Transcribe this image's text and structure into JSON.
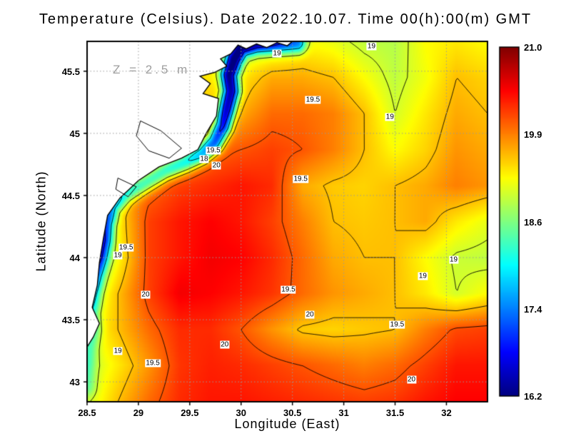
{
  "chart_data": {
    "type": "heatmap",
    "title": "Temperature (Celsius). Date 2022.10.07. Time 00(h):00(m) GMT",
    "units": "Celsius",
    "depth_annotation": "Z = 2.5 m",
    "grid_on": true,
    "x_axis": {
      "label": "Longitude (East)",
      "range": [
        28.5,
        32.4
      ],
      "tick_values": [
        28.5,
        29,
        29.5,
        30,
        30.5,
        31,
        31.5,
        32
      ],
      "tick_labels": [
        "28.5",
        "29",
        "29.5",
        "30",
        "30.5",
        "31",
        "31.5",
        "32"
      ]
    },
    "y_axis": {
      "label": "Latitude (North)",
      "range": [
        42.84,
        45.74
      ],
      "tick_values": [
        43,
        43.5,
        44,
        44.5,
        45,
        45.5
      ],
      "tick_labels": [
        "43",
        "43.5",
        "44",
        "44.5",
        "45",
        "45.5"
      ]
    },
    "colorbar": {
      "min": 16.2,
      "max": 21.0,
      "tick_labels": [
        "21.0",
        "19.9",
        "18.6",
        "17.4",
        "16.2"
      ]
    },
    "colors": {
      "land": "#ffffff",
      "coast_line": "#000000",
      "grid_line": "#9a9a9a",
      "contour_line": "#000000",
      "annotation": "#9e9e9e"
    },
    "grid": {
      "lons": [
        28.5,
        28.8,
        29.1,
        29.4,
        29.7,
        30.0,
        30.3,
        30.6,
        30.9,
        31.2,
        31.5,
        31.8,
        32.1,
        32.4
      ],
      "lats": [
        45.74,
        45.45,
        45.16,
        44.87,
        44.58,
        44.29,
        44.0,
        43.71,
        43.42,
        43.13,
        42.84
      ],
      "values": [
        [
          19.3,
          19.3,
          19.3,
          19.3,
          19.2,
          18.9,
          19.0,
          19.2,
          19.1,
          18.9,
          18.85,
          19.2,
          19.3,
          19.2
        ],
        [
          19.4,
          19.4,
          19.4,
          19.4,
          19.3,
          19.3,
          19.6,
          19.6,
          19.5,
          19.2,
          18.9,
          19.15,
          19.5,
          19.4
        ],
        [
          19.5,
          19.5,
          19.5,
          19.5,
          19.5,
          19.6,
          19.9,
          19.9,
          19.8,
          19.5,
          19.0,
          19.3,
          19.6,
          19.5
        ],
        [
          19.6,
          19.6,
          19.6,
          19.7,
          19.9,
          20.0,
          20.1,
          20.0,
          19.8,
          19.5,
          19.2,
          19.4,
          19.7,
          19.6
        ],
        [
          18.9,
          19.6,
          19.9,
          20.1,
          20.2,
          20.3,
          20.2,
          19.6,
          19.45,
          19.4,
          19.5,
          19.6,
          19.8,
          19.7
        ],
        [
          18.5,
          19.3,
          20.1,
          20.3,
          20.4,
          20.3,
          20.1,
          19.8,
          19.5,
          19.45,
          19.5,
          19.6,
          19.3,
          19.1
        ],
        [
          18.3,
          19.2,
          20.1,
          20.3,
          20.45,
          20.4,
          20.2,
          19.9,
          19.6,
          19.5,
          19.5,
          19.2,
          18.95,
          18.9
        ],
        [
          18.8,
          19.5,
          20.1,
          20.45,
          20.4,
          20.3,
          20.15,
          19.9,
          19.7,
          19.6,
          19.5,
          19.3,
          19.0,
          19.2
        ],
        [
          19.1,
          19.5,
          19.9,
          20.2,
          20.2,
          20.0,
          19.7,
          19.45,
          19.4,
          19.45,
          19.5,
          19.8,
          20.05,
          20.1
        ],
        [
          18.9,
          19.3,
          19.7,
          20.15,
          20.25,
          20.2,
          20.1,
          20.0,
          19.9,
          19.8,
          19.9,
          20.1,
          20.3,
          20.3
        ],
        [
          19.0,
          19.5,
          19.9,
          20.2,
          20.3,
          20.3,
          20.25,
          20.2,
          20.15,
          20.1,
          20.15,
          20.3,
          20.4,
          20.4
        ]
      ]
    },
    "coastal_cold_band": {
      "width_deg": 0.08,
      "points": [
        [
          30.55,
          45.73,
          1.8
        ],
        [
          30.35,
          45.73,
          2.2
        ],
        [
          30.15,
          45.73,
          2.7
        ],
        [
          30.0,
          45.7,
          3.0
        ],
        [
          29.93,
          45.6,
          3.2
        ],
        [
          29.88,
          45.47,
          3.1
        ],
        [
          29.9,
          45.34,
          3.0
        ],
        [
          29.86,
          45.2,
          3.0
        ],
        [
          29.82,
          45.06,
          2.8
        ],
        [
          29.74,
          44.93,
          2.6
        ],
        [
          29.62,
          44.84,
          2.2
        ],
        [
          29.46,
          44.77,
          1.8
        ],
        [
          29.26,
          44.7,
          1.6
        ],
        [
          29.06,
          44.6,
          1.5
        ],
        [
          28.88,
          44.52,
          1.5
        ],
        [
          28.74,
          44.42,
          1.7
        ],
        [
          28.68,
          44.28,
          1.9
        ],
        [
          28.66,
          44.14,
          2.0
        ],
        [
          28.62,
          44.0,
          1.9
        ],
        [
          28.58,
          43.86,
          1.6
        ],
        [
          28.55,
          43.7,
          1.3
        ],
        [
          28.53,
          43.55,
          1.0
        ],
        [
          28.56,
          43.42,
          0.8
        ],
        [
          28.52,
          43.28,
          0.7
        ],
        [
          28.5,
          43.12,
          0.6
        ],
        [
          28.5,
          42.96,
          0.5
        ]
      ]
    },
    "contour_levels": [
      17,
      18,
      19,
      19.5,
      20
    ],
    "contour_labels": [
      {
        "lon": 30.35,
        "lat": 45.64,
        "text": "19"
      },
      {
        "lon": 31.27,
        "lat": 45.7,
        "text": "19"
      },
      {
        "lon": 30.7,
        "lat": 45.27,
        "text": "19.5"
      },
      {
        "lon": 31.45,
        "lat": 45.13,
        "text": "19"
      },
      {
        "lon": 29.73,
        "lat": 44.86,
        "text": "19.5"
      },
      {
        "lon": 29.64,
        "lat": 44.79,
        "text": "18"
      },
      {
        "lon": 29.76,
        "lat": 44.74,
        "text": "20"
      },
      {
        "lon": 30.58,
        "lat": 44.63,
        "text": "19.5"
      },
      {
        "lon": 28.88,
        "lat": 44.08,
        "text": "19.5"
      },
      {
        "lon": 28.8,
        "lat": 44.02,
        "text": "19"
      },
      {
        "lon": 29.07,
        "lat": 43.7,
        "text": "20"
      },
      {
        "lon": 30.46,
        "lat": 43.74,
        "text": "19.5"
      },
      {
        "lon": 30.67,
        "lat": 43.54,
        "text": "20"
      },
      {
        "lon": 31.52,
        "lat": 43.46,
        "text": "19.5"
      },
      {
        "lon": 31.77,
        "lat": 43.85,
        "text": "19"
      },
      {
        "lon": 32.07,
        "lat": 43.98,
        "text": "19"
      },
      {
        "lon": 28.8,
        "lat": 43.25,
        "text": "19"
      },
      {
        "lon": 29.14,
        "lat": 43.15,
        "text": "19.5"
      },
      {
        "lon": 29.84,
        "lat": 43.3,
        "text": "20"
      },
      {
        "lon": 31.66,
        "lat": 43.02,
        "text": "20"
      }
    ],
    "coastline": [
      [
        28.5,
        43.28
      ],
      [
        28.5,
        45.74
      ],
      [
        30.5,
        45.74
      ],
      [
        30.45,
        45.705
      ],
      [
        30.35,
        45.73
      ],
      [
        30.25,
        45.69
      ],
      [
        30.15,
        45.72
      ],
      [
        30.05,
        45.68
      ],
      [
        29.97,
        45.71
      ],
      [
        29.9,
        45.64
      ],
      [
        29.8,
        45.6
      ],
      [
        29.86,
        45.54
      ],
      [
        29.74,
        45.49
      ],
      [
        29.6,
        45.46
      ],
      [
        29.7,
        45.4
      ],
      [
        29.63,
        45.32
      ],
      [
        29.78,
        45.28
      ],
      [
        29.76,
        45.14
      ],
      [
        29.66,
        45.0
      ],
      [
        29.58,
        44.87
      ],
      [
        29.42,
        44.8
      ],
      [
        29.2,
        44.73
      ],
      [
        29.0,
        44.62
      ],
      [
        28.82,
        44.48
      ],
      [
        28.7,
        44.34
      ],
      [
        28.66,
        44.16
      ],
      [
        28.62,
        43.96
      ],
      [
        28.6,
        43.78
      ],
      [
        28.55,
        43.6
      ],
      [
        28.62,
        43.47
      ],
      [
        28.56,
        43.36
      ],
      [
        28.5,
        43.28
      ]
    ],
    "lagoons": [
      [
        [
          29.02,
          45.1
        ],
        [
          29.22,
          45.02
        ],
        [
          29.42,
          44.88
        ],
        [
          29.3,
          44.8
        ],
        [
          29.1,
          44.86
        ],
        [
          28.98,
          44.98
        ],
        [
          29.02,
          45.1
        ]
      ],
      [
        [
          28.8,
          44.64
        ],
        [
          28.98,
          44.57
        ],
        [
          28.9,
          44.49
        ],
        [
          28.78,
          44.55
        ],
        [
          28.8,
          44.64
        ]
      ]
    ]
  }
}
